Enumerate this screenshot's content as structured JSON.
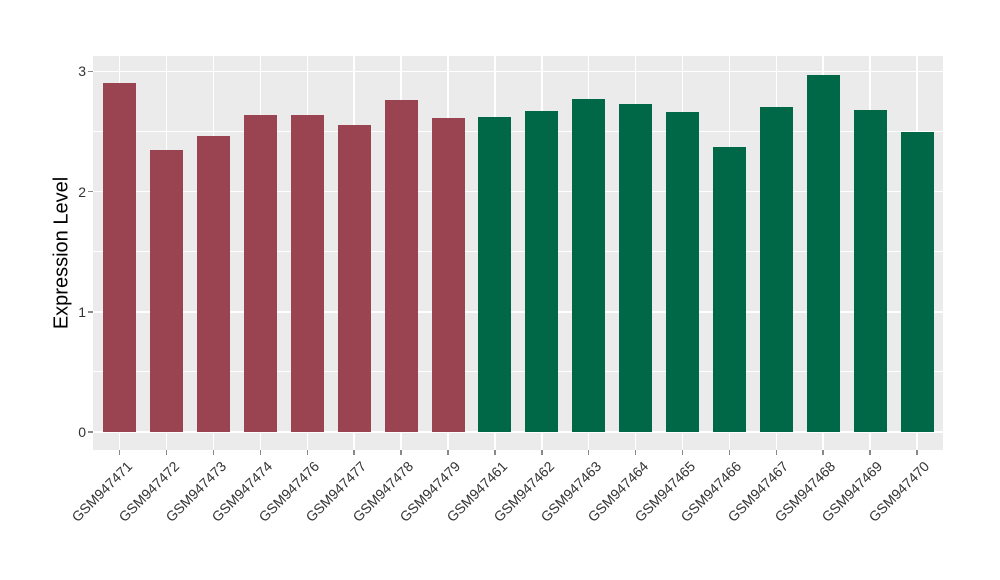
{
  "chart_data": {
    "type": "bar",
    "title": "",
    "xlabel": "",
    "ylabel": "Expression Level",
    "yticks": [
      0,
      1,
      2,
      3
    ],
    "ylim": [
      0,
      3.13
    ],
    "grid": "horizontal major+minor and vertical major white gridlines on gray panel",
    "legend": "none",
    "categories": [
      "GSM947471",
      "GSM947472",
      "GSM947473",
      "GSM947474",
      "GSM947476",
      "GSM947477",
      "GSM947478",
      "GSM947479",
      "GSM947461",
      "GSM947462",
      "GSM947463",
      "GSM947464",
      "GSM947465",
      "GSM947466",
      "GSM947467",
      "GSM947468",
      "GSM947469",
      "GSM947470"
    ],
    "values": [
      2.9,
      2.35,
      2.46,
      2.64,
      2.64,
      2.55,
      2.76,
      2.61,
      2.62,
      2.67,
      2.77,
      2.73,
      2.66,
      2.37,
      2.7,
      2.97,
      2.68,
      2.5
    ],
    "bar_colors": [
      "#9A4452",
      "#9A4452",
      "#9A4452",
      "#9A4452",
      "#9A4452",
      "#9A4452",
      "#9A4452",
      "#9A4452",
      "#006847",
      "#006847",
      "#006847",
      "#006847",
      "#006847",
      "#006847",
      "#006847",
      "#006847",
      "#006847",
      "#006847"
    ]
  },
  "style": {
    "panel_bg": "#EBEBEB",
    "grid_color": "#FFFFFF",
    "tick_mark_color": "#888888",
    "axis_text_color": "#333333",
    "axis_title_color": "#000000",
    "outer_bg": "#FFFFFF",
    "group_color_red": "#9A4452",
    "group_color_green": "#006847"
  }
}
